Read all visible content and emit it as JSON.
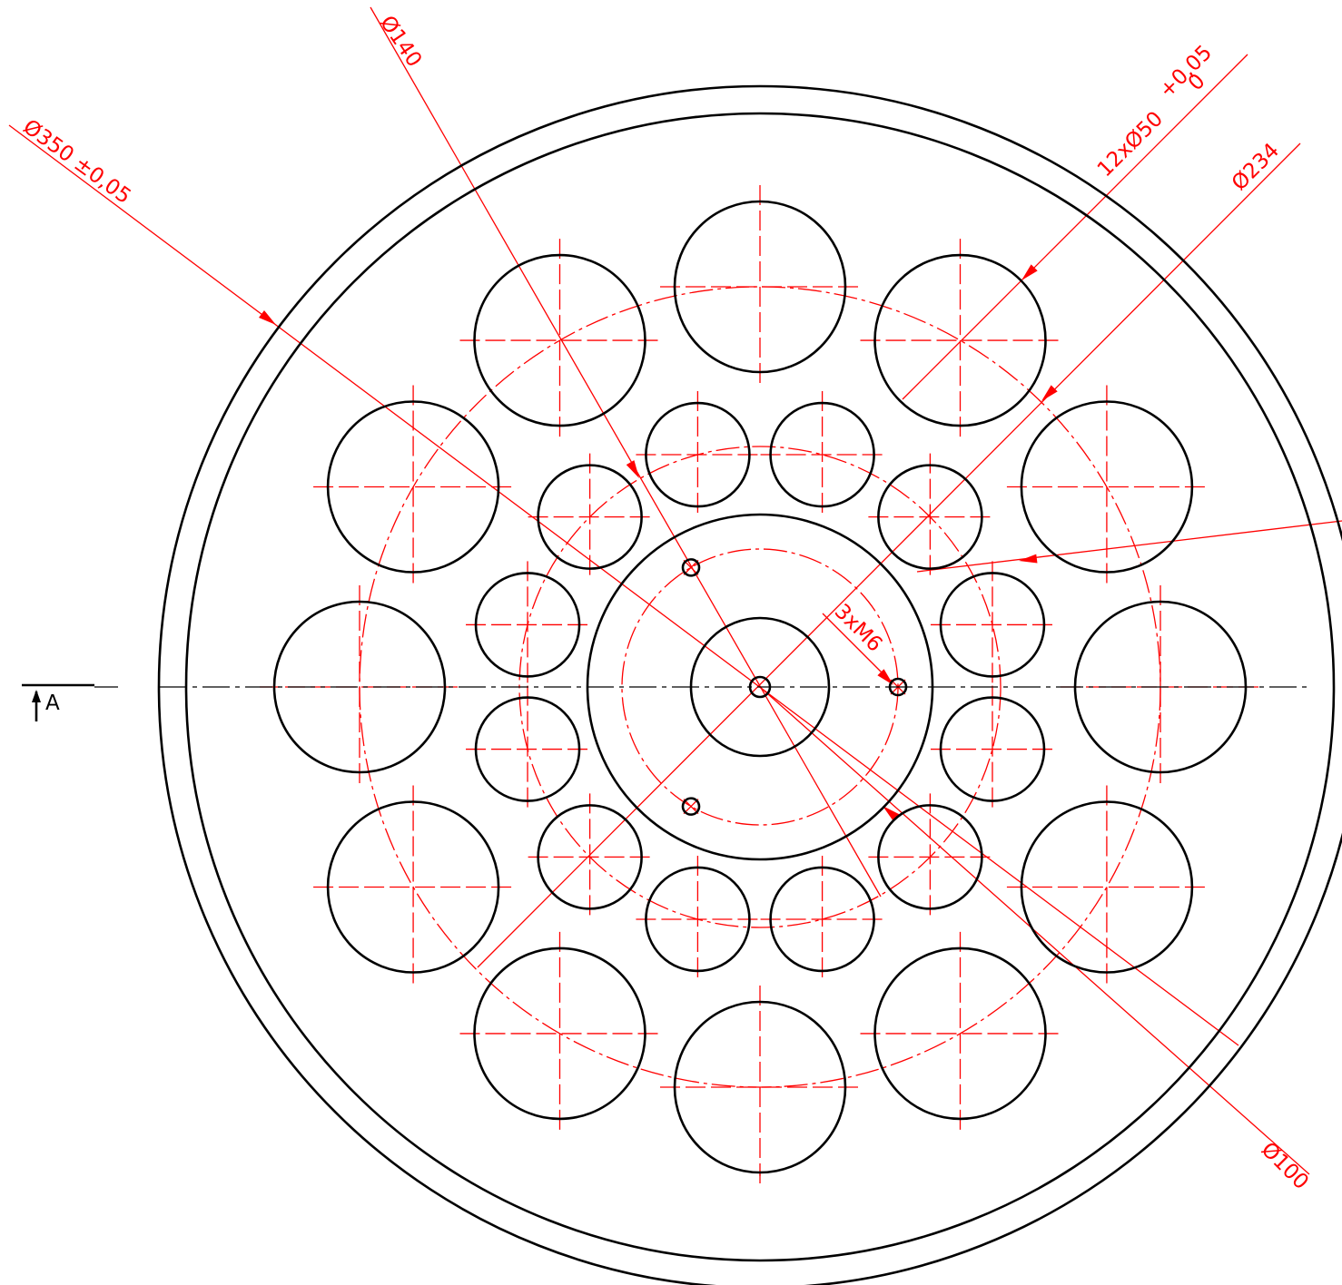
{
  "drawing": {
    "line_color": "#000000",
    "dimension_color": "#ff0000",
    "dimensions": {
      "outer_diameter": "Ø350 ±0,05",
      "inner_pcd": "Ø140",
      "bore_pattern": "12xØ50",
      "bore_tol_upper": "+0,05",
      "bore_tol_lower": "0",
      "outer_pcd": "Ø234",
      "hub_diameter": "Ø100",
      "threaded_holes": "3xM6"
    },
    "section_marker": "A"
  }
}
